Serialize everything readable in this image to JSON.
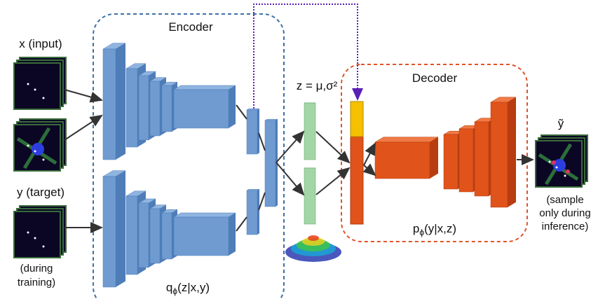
{
  "encoder": {
    "title": "Encoder",
    "label": "q",
    "subscript": "ϕ",
    "args": "(z|x,y)"
  },
  "decoder": {
    "title": "Decoder",
    "label": "p",
    "subscript": "ϕ",
    "args": "(y|x,z)"
  },
  "inputs": {
    "x": "x (input)",
    "y": "y (target)",
    "y_note": [
      "(during",
      "training)"
    ]
  },
  "latent": "z = μ,σ²",
  "output": {
    "label": "ỹ",
    "note": [
      "(sample",
      "only during",
      "inference)"
    ]
  }
}
